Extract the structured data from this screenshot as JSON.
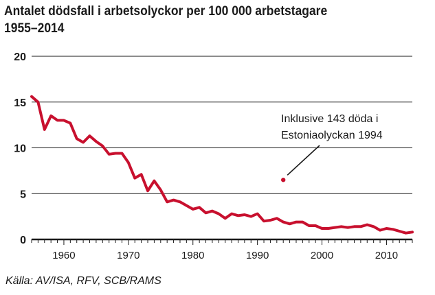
{
  "chart_data": {
    "type": "line",
    "title_line1": "Antalet dödsfall i arbetsolyckor per 100 000 arbetstagare",
    "title_line2": "1955–2014",
    "source": "Källa: AV/ISA, RFV, SCB/RAMS",
    "xlim": [
      1955,
      2014
    ],
    "ylim": [
      0,
      20
    ],
    "x_ticks": [
      1960,
      1970,
      1980,
      1990,
      2000,
      2010
    ],
    "y_ticks": [
      0,
      5,
      10,
      15,
      20
    ],
    "grid": "horizontal",
    "series": [
      {
        "color": "#c8102e",
        "x": [
          1955,
          1956,
          1957,
          1958,
          1959,
          1960,
          1961,
          1962,
          1963,
          1964,
          1965,
          1966,
          1967,
          1968,
          1969,
          1970,
          1971,
          1972,
          1973,
          1974,
          1975,
          1976,
          1977,
          1978,
          1979,
          1980,
          1981,
          1982,
          1983,
          1984,
          1985,
          1986,
          1987,
          1988,
          1989,
          1990,
          1991,
          1992,
          1993,
          1994,
          1995,
          1996,
          1997,
          1998,
          1999,
          2000,
          2001,
          2002,
          2003,
          2004,
          2005,
          2006,
          2007,
          2008,
          2009,
          2010,
          2011,
          2012,
          2013,
          2014
        ],
        "y": [
          15.6,
          15.0,
          12.0,
          13.5,
          13.0,
          13.0,
          12.7,
          11.0,
          10.6,
          11.3,
          10.7,
          10.2,
          9.3,
          9.4,
          9.4,
          8.4,
          6.7,
          7.1,
          5.3,
          6.4,
          5.4,
          4.1,
          4.3,
          4.1,
          3.7,
          3.3,
          3.5,
          2.9,
          3.1,
          2.8,
          2.3,
          2.8,
          2.6,
          2.7,
          2.5,
          2.8,
          2.0,
          2.1,
          2.3,
          1.9,
          1.7,
          1.9,
          1.9,
          1.5,
          1.5,
          1.2,
          1.2,
          1.3,
          1.4,
          1.3,
          1.4,
          1.4,
          1.6,
          1.4,
          1.0,
          1.2,
          1.1,
          0.9,
          0.7,
          0.8
        ]
      }
    ],
    "outlier": {
      "x": 1994,
      "y": 6.5
    },
    "annotation": {
      "line1": "Inklusive 143 döda i",
      "line2": "Estoniaolyckan 1994"
    }
  }
}
